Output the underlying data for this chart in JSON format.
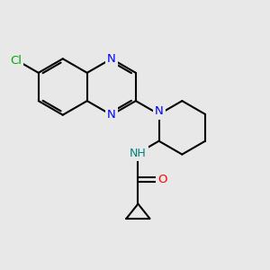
{
  "background_color": "#e8e8e8",
  "bond_color": "#000000",
  "bond_width": 1.5,
  "N_color": "#0000ff",
  "O_color": "#ff0000",
  "Cl_color": "#00aa00",
  "NH_color": "#008080",
  "figsize": [
    3.0,
    3.0
  ],
  "dpi": 100,
  "xlim": [
    0,
    10
  ],
  "ylim": [
    0,
    10
  ]
}
